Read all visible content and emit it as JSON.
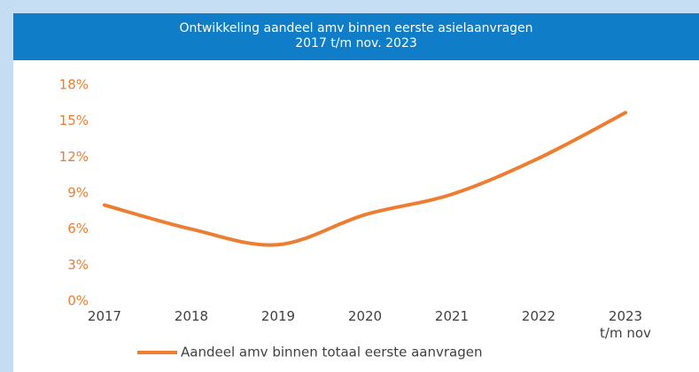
{
  "chart_data": {
    "type": "line",
    "title": "Ontwikkeling aandeel amv binnen eerste asielaanvragen\n2017 t/m nov. 2023",
    "categories": [
      "2017",
      "2018",
      "2019",
      "2020",
      "2021",
      "2022",
      "2023\nt/m nov"
    ],
    "series": [
      {
        "name": "Aandeel amv binnen totaal eerste aanvragen",
        "color": "#ed7d31",
        "values": [
          8.0,
          6.0,
          4.7,
          7.2,
          8.9,
          11.9,
          15.7
        ]
      }
    ],
    "ylim": [
      0,
      18
    ],
    "yticks": [
      {
        "value": 0,
        "label": "0%"
      },
      {
        "value": 3,
        "label": "3%"
      },
      {
        "value": 6,
        "label": "6%"
      },
      {
        "value": 9,
        "label": "9%"
      },
      {
        "value": 12,
        "label": "12%"
      },
      {
        "value": 15,
        "label": "15%"
      },
      {
        "value": 18,
        "label": "18%"
      }
    ],
    "grid": false,
    "legend": "bottom"
  }
}
